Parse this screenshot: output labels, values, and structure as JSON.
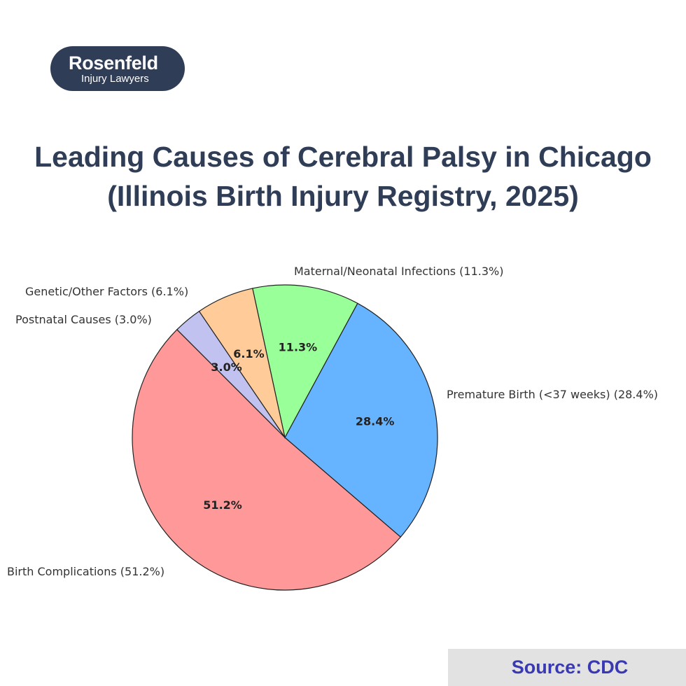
{
  "logo": {
    "main": "Rosenfeld",
    "sub": "Injury Lawyers"
  },
  "title": {
    "line1": "Leading Causes of Cerebral Palsy in Chicago",
    "line2": "(Illinois Birth Injury Registry, 2025)"
  },
  "chart_data": {
    "type": "pie",
    "title": "Leading Causes of Cerebral Palsy in Chicago (Illinois Birth Injury Registry, 2025)",
    "start_angle_deg": 135,
    "direction": "counterclockwise",
    "slices": [
      {
        "label": "Birth Complications (51.2%)",
        "value": 51.2,
        "pct_label": "51.2%",
        "color": "#ff9999"
      },
      {
        "label": "Premature Birth (<37 weeks) (28.4%)",
        "value": 28.4,
        "pct_label": "28.4%",
        "color": "#66b3ff"
      },
      {
        "label": "Maternal/Neonatal Infections (11.3%)",
        "value": 11.3,
        "pct_label": "11.3%",
        "color": "#99ff99"
      },
      {
        "label": "Genetic/Other Factors (6.1%)",
        "value": 6.1,
        "pct_label": "6.1%",
        "color": "#ffcc99"
      },
      {
        "label": "Postnatal Causes (3.0%)",
        "value": 3.0,
        "pct_label": "3.0%",
        "color": "#c2c2f0"
      }
    ]
  },
  "source": {
    "text": "Source: CDC"
  }
}
